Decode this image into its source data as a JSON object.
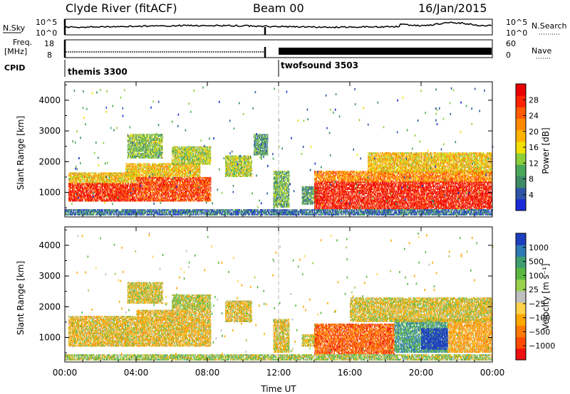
{
  "header": {
    "station": "Clyde River (fitACF)",
    "beam": "Beam 00",
    "date": "16/Jan/2015"
  },
  "nsky_panel": {
    "left_label": "N.Sky",
    "right_label": "N.Search",
    "left_ticks": [
      "10^5",
      "10^0"
    ],
    "right_ticks": [
      "10^5",
      "10^0"
    ]
  },
  "freq_panel": {
    "left_label_1": "Freq.",
    "left_label_2": "[MHz]",
    "right_label": "Nave",
    "left_ticks": [
      "18",
      "8"
    ],
    "right_ticks": [
      "60",
      "0"
    ]
  },
  "cpid": {
    "label": "CPID",
    "programs": [
      {
        "name": "themis 3300",
        "start_hour": 0
      },
      {
        "name": "twofsound 3503",
        "start_hour": 12
      }
    ]
  },
  "axes": {
    "xlabel": "Time UT",
    "ylabel": "Slant Range [km]",
    "x_ticks": [
      "00:00",
      "04:00",
      "08:00",
      "12:00",
      "16:00",
      "20:00",
      "00:00"
    ],
    "y_ticks": [
      "1000",
      "2000",
      "3000",
      "4000"
    ]
  },
  "colorbars": {
    "power": {
      "label": "Power [dB]",
      "ticks": [
        "4",
        "8",
        "12",
        "16",
        "20",
        "24",
        "28"
      ],
      "colors": [
        "#1a2bd8",
        "#2f56a6",
        "#3d8a66",
        "#49a85a",
        "#8ccf3a",
        "#f3e000",
        "#ffb300",
        "#ff8a00",
        "#ff5a00",
        "#ff2200",
        "#e80000"
      ]
    },
    "velocity": {
      "label": "Velocity [m s⁻¹]",
      "ticks": [
        "1000",
        "500",
        "100",
        "25",
        "−25",
        "−100",
        "−500",
        "−1000"
      ],
      "colors": [
        "#1e3fbf",
        "#2f7ab5",
        "#3e9e70",
        "#5ab840",
        "#9ad14a",
        "#bfbfbf",
        "#ffd24a",
        "#ffa800",
        "#ff7a00",
        "#ff4a00",
        "#ee1010"
      ]
    }
  },
  "chart_data": [
    {
      "type": "heatmap",
      "title": "Power",
      "x_range_hours": [
        0,
        24
      ],
      "ylim": [
        200,
        4600
      ],
      "blobs": [
        {
          "t0": 0.2,
          "t1": 4.0,
          "r0": 700,
          "r1": 1300,
          "v": 28
        },
        {
          "t0": 0.2,
          "t1": 4.0,
          "r0": 1300,
          "r1": 1650,
          "v": 18
        },
        {
          "t0": 4.0,
          "t1": 8.2,
          "r0": 700,
          "r1": 1500,
          "v": 26
        },
        {
          "t0": 3.4,
          "t1": 7.6,
          "r0": 1500,
          "r1": 1950,
          "v": 18
        },
        {
          "t0": 3.5,
          "t1": 5.5,
          "r0": 2100,
          "r1": 2900,
          "v": 12
        },
        {
          "t0": 6.0,
          "t1": 8.2,
          "r0": 1900,
          "r1": 2500,
          "v": 14
        },
        {
          "t0": 9.0,
          "t1": 10.5,
          "r0": 1500,
          "r1": 2200,
          "v": 14
        },
        {
          "t0": 10.6,
          "t1": 11.4,
          "r0": 2200,
          "r1": 2900,
          "v": 9
        },
        {
          "t0": 11.7,
          "t1": 12.6,
          "r0": 500,
          "r1": 1700,
          "v": 11
        },
        {
          "t0": 13.3,
          "t1": 14.2,
          "r0": 600,
          "r1": 1200,
          "v": 9
        },
        {
          "t0": 14.0,
          "t1": 24.0,
          "r0": 450,
          "r1": 1350,
          "v": 29
        },
        {
          "t0": 14.0,
          "t1": 24.0,
          "r0": 1350,
          "r1": 1700,
          "v": 22
        },
        {
          "t0": 17.0,
          "t1": 24.0,
          "r0": 1650,
          "r1": 2300,
          "v": 18
        },
        {
          "t0": 0.0,
          "t1": 24.0,
          "r0": 250,
          "r1": 450,
          "v": 6
        }
      ]
    },
    {
      "type": "heatmap",
      "title": "Velocity",
      "x_range_hours": [
        0,
        24
      ],
      "ylim": [
        200,
        4600
      ],
      "blobs": [
        {
          "t0": 0.2,
          "t1": 4.0,
          "r0": 700,
          "r1": 1700,
          "v": -100
        },
        {
          "t0": 4.0,
          "t1": 8.2,
          "r0": 700,
          "r1": 1900,
          "v": -110
        },
        {
          "t0": 3.5,
          "t1": 5.5,
          "r0": 2100,
          "r1": 2800,
          "v": -60
        },
        {
          "t0": 6.0,
          "t1": 8.2,
          "r0": 1900,
          "r1": 2400,
          "v": 40
        },
        {
          "t0": 9.0,
          "t1": 10.5,
          "r0": 1500,
          "r1": 2200,
          "v": -90
        },
        {
          "t0": 11.7,
          "t1": 12.6,
          "r0": 500,
          "r1": 1600,
          "v": -80
        },
        {
          "t0": 13.3,
          "t1": 14.2,
          "r0": 700,
          "r1": 1100,
          "v": -40
        },
        {
          "t0": 14.0,
          "t1": 18.5,
          "r0": 450,
          "r1": 1450,
          "v": -600
        },
        {
          "t0": 18.5,
          "t1": 21.5,
          "r0": 500,
          "r1": 1600,
          "v": 300
        },
        {
          "t0": 20.0,
          "t1": 21.5,
          "r0": 600,
          "r1": 1300,
          "v": 1000
        },
        {
          "t0": 21.5,
          "t1": 24.0,
          "r0": 500,
          "r1": 1600,
          "v": -200
        },
        {
          "t0": 16.0,
          "t1": 24.0,
          "r0": 1500,
          "r1": 2300,
          "v": -60
        },
        {
          "t0": 0.0,
          "t1": 24.0,
          "r0": 250,
          "r1": 450,
          "v": 80
        }
      ]
    }
  ]
}
